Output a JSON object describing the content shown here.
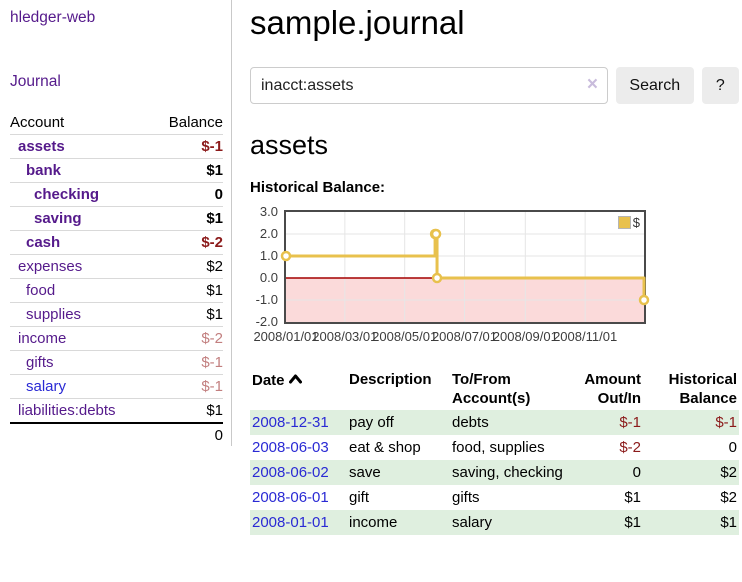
{
  "app": {
    "brand": "hledger-web",
    "nav_journal": "Journal"
  },
  "sidebar": {
    "accounts_header": {
      "account": "Account",
      "balance": "Balance"
    },
    "accounts": [
      {
        "name": "assets",
        "depth": 1,
        "bold": true,
        "balance": "$-1",
        "balance_class": "neg"
      },
      {
        "name": "bank",
        "depth": 2,
        "bold": true,
        "balance": "$1",
        "balance_class": ""
      },
      {
        "name": "checking",
        "depth": 3,
        "bold": true,
        "balance": "0",
        "balance_class": ""
      },
      {
        "name": "saving",
        "depth": 3,
        "bold": true,
        "balance": "$1",
        "balance_class": ""
      },
      {
        "name": "cash",
        "depth": 2,
        "bold": true,
        "balance": "$-2",
        "balance_class": "neg"
      },
      {
        "name": "expenses",
        "depth": 1,
        "bold": false,
        "balance": "$2",
        "balance_class": ""
      },
      {
        "name": "food",
        "depth": 2,
        "bold": false,
        "balance": "$1",
        "balance_class": ""
      },
      {
        "name": "supplies",
        "depth": 2,
        "bold": false,
        "balance": "$1",
        "balance_class": ""
      },
      {
        "name": "income",
        "depth": 1,
        "bold": false,
        "balance": "$-2",
        "balance_class": "neg-light"
      },
      {
        "name": "gifts",
        "depth": 2,
        "bold": false,
        "balance": "$-1",
        "balance_class": "neg-light"
      },
      {
        "name": "salary",
        "depth": 2,
        "bold": false,
        "balance": "$-1",
        "balance_class": "neg-light",
        "link_color": "blue"
      },
      {
        "name": "liabilities:debts",
        "depth": 1,
        "bold": false,
        "balance": "$1",
        "balance_class": ""
      }
    ],
    "total": "0"
  },
  "header": {
    "title": "sample.journal"
  },
  "search": {
    "value": "inacct:assets",
    "clear_icon": "×",
    "button": "Search",
    "help_button": "?"
  },
  "account_page": {
    "title": "assets",
    "chart_label": "Historical Balance:"
  },
  "chart_data": {
    "type": "line",
    "title": "Historical Balance:",
    "series": [
      {
        "name": "$",
        "color": "#e8c14d",
        "step": true,
        "markers": true,
        "points": [
          [
            "2008-01-01",
            1
          ],
          [
            "2008-06-01",
            2
          ],
          [
            "2008-06-02",
            2
          ],
          [
            "2008-06-03",
            0
          ],
          [
            "2008-12-31",
            -1
          ]
        ]
      }
    ],
    "x_range": [
      "2008-01-01",
      "2008-12-31"
    ],
    "ylim": [
      -2,
      3
    ],
    "y_ticks": [
      3,
      2,
      1,
      0,
      -1,
      -2
    ],
    "x_ticks": [
      {
        "date": "2008-01-01",
        "label": "2008/01/01"
      },
      {
        "date": "2008-03-01",
        "label": "2008/03/01"
      },
      {
        "date": "2008-05-01",
        "label": "2008/05/01"
      },
      {
        "date": "2008-07-01",
        "label": "2008/07/01"
      },
      {
        "date": "2008-09-01",
        "label": "2008/09/01"
      },
      {
        "date": "2008-11-01",
        "label": "2008/11/01"
      }
    ],
    "legend_position": "top-right",
    "grid": true,
    "negative_region_color": "#fbdada",
    "zero_line_color": "#a40000",
    "grid_color": "#e6e6e6",
    "border_color": "#4a4a4a"
  },
  "register": {
    "columns": {
      "date": "Date",
      "description": "Description",
      "tofrom": "To/From Account(s)",
      "amount": "Amount Out/In",
      "balance": "Historical Balance"
    },
    "rows": [
      {
        "date": "2008-12-31",
        "description": "pay off",
        "accounts": "debts",
        "amount": "$-1",
        "amount_neg": true,
        "balance": "$-1",
        "balance_neg": true
      },
      {
        "date": "2008-06-03",
        "description": "eat & shop",
        "accounts": "food, supplies",
        "amount": "$-2",
        "amount_neg": true,
        "balance": "0",
        "balance_neg": false
      },
      {
        "date": "2008-06-02",
        "description": "save",
        "accounts": "saving, checking",
        "amount": "0",
        "amount_neg": false,
        "balance": "$2",
        "balance_neg": false
      },
      {
        "date": "2008-06-01",
        "description": "gift",
        "accounts": "gifts",
        "amount": "$1",
        "amount_neg": false,
        "balance": "$2",
        "balance_neg": false
      },
      {
        "date": "2008-01-01",
        "description": "income",
        "accounts": "salary",
        "amount": "$1",
        "amount_neg": false,
        "balance": "$1",
        "balance_neg": false
      }
    ]
  }
}
